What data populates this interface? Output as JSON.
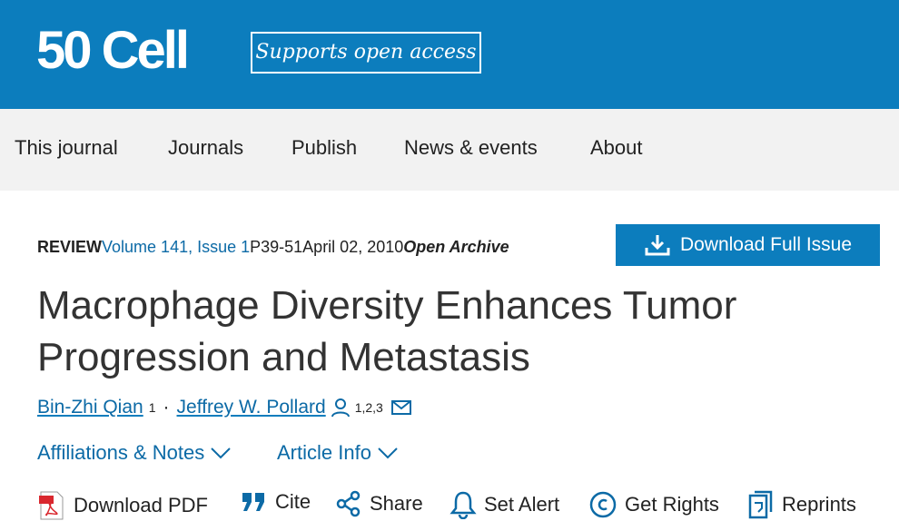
{
  "header": {
    "logo_number": "50",
    "logo_name": "Cell",
    "badge": "Supports open access"
  },
  "nav": [
    "This journal",
    "Journals",
    "Publish",
    "News & events",
    "About"
  ],
  "meta": {
    "type": "REVIEW",
    "volume": "Volume 141, Issue 1",
    "pages": "P39-51",
    "date": "April 02, 2010",
    "access": "Open Archive"
  },
  "download_button": "Download Full Issue",
  "title": "Macrophage Diversity Enhances Tumor Progression and Metastasis",
  "authors": [
    {
      "name": "Bin-Zhi Qian",
      "affiliations": "1"
    },
    {
      "name": "Jeffrey W. Pollard",
      "affiliations": "1,2,3"
    }
  ],
  "author_separator": "·",
  "toggles": [
    "Affiliations & Notes",
    "Article Info"
  ],
  "actions": [
    "Download PDF",
    "Cite",
    "Share",
    "Set Alert",
    "Get Rights",
    "Reprints"
  ]
}
